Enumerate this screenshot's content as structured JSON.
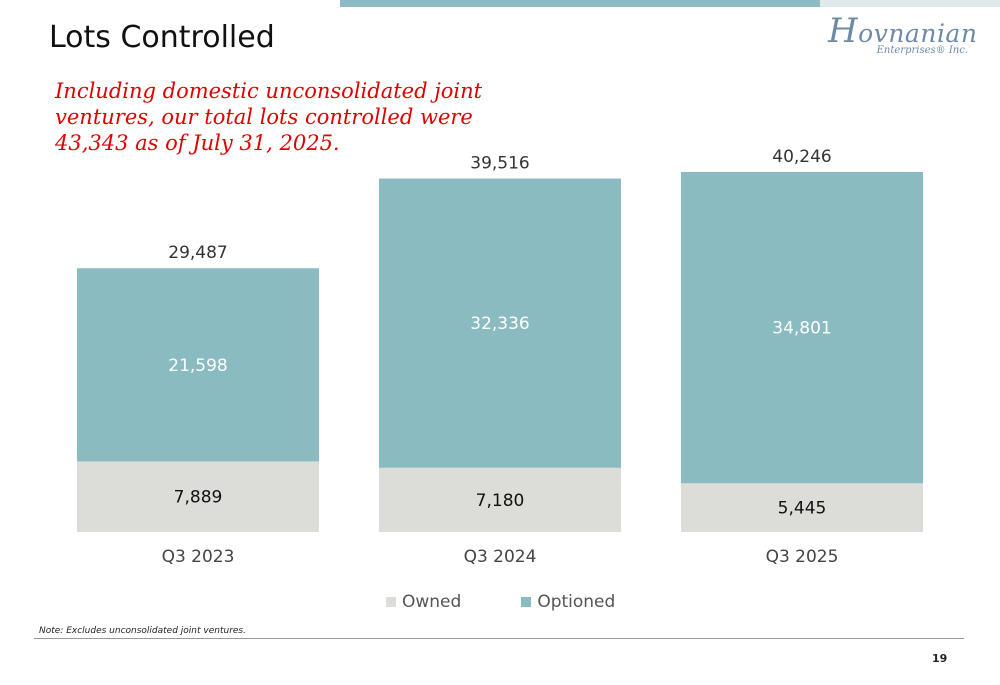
{
  "slide": {
    "title": "Lots Controlled",
    "logo_main": "Hovnanian",
    "logo_sub": "Enterprises® Inc.",
    "callout_lines": [
      "Including domestic unconsolidated joint",
      "ventures, our total lots controlled were",
      "43,343 as of July 31, 2025."
    ],
    "note": "Note: Excludes unconsolidated joint ventures.",
    "page_number": "19"
  },
  "colors": {
    "owned": "#dcdcd8",
    "optioned": "#8abbc1",
    "callout": "#e00000",
    "accent_band": "#8cbcc2"
  },
  "chart_data": {
    "type": "bar",
    "stacked": true,
    "categories": [
      "Q3 2023",
      "Q3 2024",
      "Q3 2025"
    ],
    "series": [
      {
        "name": "Owned",
        "values": [
          7889,
          7180,
          5445
        ],
        "labels": [
          "7,889",
          "7,180",
          "5,445"
        ],
        "color": "#dcdcd8"
      },
      {
        "name": "Optioned",
        "values": [
          21598,
          32336,
          34801
        ],
        "labels": [
          "21,598",
          "32,336",
          "34,801"
        ],
        "color": "#8abbc1"
      }
    ],
    "totals": [
      29487,
      39516,
      40246
    ],
    "total_labels": [
      "29,487",
      "39,516",
      "40,246"
    ],
    "ylim": [
      0,
      40246
    ],
    "grid": false,
    "legend_position": "bottom"
  }
}
